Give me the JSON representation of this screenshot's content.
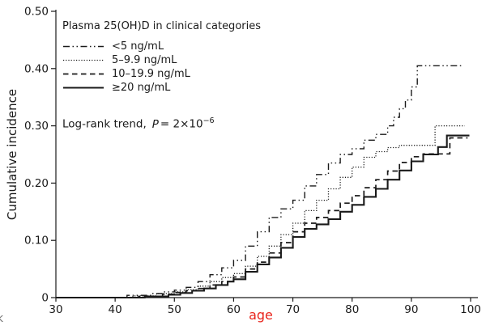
{
  "figure": {
    "y_axis_title": "Cumulative incidence",
    "x_axis_title": "age",
    "stray_glyph": "k"
  },
  "annotation": {
    "prefix": "Log-rank trend,",
    "p_symbol": "P",
    "equation": "= 2×10",
    "exponent": "−6"
  },
  "colors": {
    "curves": "#1a1a1a",
    "axis": "#1a1a1a",
    "text": "#1a1a1a",
    "age_label": "#e8251d",
    "background": "#ffffff"
  },
  "chart_data": {
    "type": "line",
    "subtype": "kaplan-meier-step",
    "title": "",
    "xlabel": "age",
    "ylabel": "Cumulative incidence",
    "xlim": [
      30,
      100
    ],
    "ylim": [
      0,
      0.5
    ],
    "grid": false,
    "legend_position": "upper-left",
    "legend_title": "Plasma 25(OH)D in clinical categories",
    "annotation_text": "Log-rank trend, P = 2×10−6",
    "x_ticks": [
      30,
      40,
      50,
      60,
      70,
      80,
      90,
      100
    ],
    "y_ticks": [
      {
        "value": 0.0,
        "label": "0"
      },
      {
        "value": 0.1,
        "label": "0.10"
      },
      {
        "value": 0.2,
        "label": "0.20"
      },
      {
        "value": 0.3,
        "label": "0.30"
      },
      {
        "value": 0.4,
        "label": "0.40"
      },
      {
        "value": 0.5,
        "label": "0.50"
      }
    ],
    "series": [
      {
        "name": "<5 ng/mL",
        "dash": "dash-dot-dot",
        "points": [
          [
            30,
            0
          ],
          [
            42,
            0.004
          ],
          [
            46,
            0.007
          ],
          [
            48,
            0.01
          ],
          [
            50,
            0.013
          ],
          [
            52,
            0.018
          ],
          [
            54,
            0.028
          ],
          [
            56,
            0.04
          ],
          [
            58,
            0.052
          ],
          [
            60,
            0.065
          ],
          [
            62,
            0.09
          ],
          [
            64,
            0.115
          ],
          [
            66,
            0.14
          ],
          [
            68,
            0.155
          ],
          [
            70,
            0.17
          ],
          [
            72,
            0.195
          ],
          [
            74,
            0.215
          ],
          [
            76,
            0.235
          ],
          [
            78,
            0.25
          ],
          [
            80,
            0.26
          ],
          [
            82,
            0.275
          ],
          [
            84,
            0.285
          ],
          [
            86,
            0.3
          ],
          [
            87,
            0.315
          ],
          [
            88,
            0.33
          ],
          [
            89,
            0.345
          ],
          [
            90,
            0.368
          ],
          [
            91,
            0.405
          ],
          [
            98.5,
            0.405
          ]
        ]
      },
      {
        "name": "5–9.9 ng/mL",
        "dash": "dotted",
        "points": [
          [
            30,
            0
          ],
          [
            43,
            0.003
          ],
          [
            47,
            0.007
          ],
          [
            50,
            0.01
          ],
          [
            52,
            0.014
          ],
          [
            54,
            0.02
          ],
          [
            56,
            0.028
          ],
          [
            58,
            0.035
          ],
          [
            60,
            0.042
          ],
          [
            62,
            0.055
          ],
          [
            64,
            0.072
          ],
          [
            66,
            0.09
          ],
          [
            68,
            0.11
          ],
          [
            70,
            0.13
          ],
          [
            72,
            0.152
          ],
          [
            74,
            0.17
          ],
          [
            76,
            0.19
          ],
          [
            78,
            0.21
          ],
          [
            80,
            0.228
          ],
          [
            82,
            0.245
          ],
          [
            84,
            0.255
          ],
          [
            86,
            0.262
          ],
          [
            88,
            0.266
          ],
          [
            94,
            0.3
          ],
          [
            99,
            0.3
          ]
        ]
      },
      {
        "name": "10–19.9 ng/mL",
        "dash": "dashed",
        "points": [
          [
            30,
            0
          ],
          [
            44,
            0.002
          ],
          [
            48,
            0.006
          ],
          [
            50,
            0.009
          ],
          [
            52,
            0.012
          ],
          [
            54,
            0.016
          ],
          [
            56,
            0.022
          ],
          [
            58,
            0.028
          ],
          [
            60,
            0.036
          ],
          [
            62,
            0.05
          ],
          [
            64,
            0.062
          ],
          [
            66,
            0.078
          ],
          [
            68,
            0.096
          ],
          [
            70,
            0.115
          ],
          [
            72,
            0.13
          ],
          [
            74,
            0.14
          ],
          [
            76,
            0.152
          ],
          [
            78,
            0.165
          ],
          [
            80,
            0.178
          ],
          [
            82,
            0.192
          ],
          [
            84,
            0.206
          ],
          [
            86,
            0.221
          ],
          [
            88,
            0.236
          ],
          [
            90,
            0.246
          ],
          [
            92,
            0.251
          ],
          [
            96.5,
            0.279
          ],
          [
            99.5,
            0.279
          ]
        ]
      },
      {
        "name": "≥20 ng/mL",
        "dash": "solid",
        "points": [
          [
            30,
            0
          ],
          [
            45,
            0.002
          ],
          [
            49,
            0.005
          ],
          [
            51,
            0.008
          ],
          [
            53,
            0.012
          ],
          [
            55,
            0.016
          ],
          [
            57,
            0.022
          ],
          [
            59,
            0.028
          ],
          [
            60,
            0.032
          ],
          [
            62,
            0.045
          ],
          [
            64,
            0.058
          ],
          [
            66,
            0.07
          ],
          [
            68,
            0.087
          ],
          [
            70,
            0.106
          ],
          [
            72,
            0.12
          ],
          [
            74,
            0.128
          ],
          [
            76,
            0.137
          ],
          [
            78,
            0.15
          ],
          [
            80,
            0.162
          ],
          [
            82,
            0.176
          ],
          [
            84,
            0.19
          ],
          [
            86,
            0.206
          ],
          [
            88,
            0.222
          ],
          [
            90,
            0.238
          ],
          [
            92,
            0.25
          ],
          [
            94.5,
            0.263
          ],
          [
            96,
            0.283
          ],
          [
            99.8,
            0.283
          ]
        ]
      }
    ]
  }
}
